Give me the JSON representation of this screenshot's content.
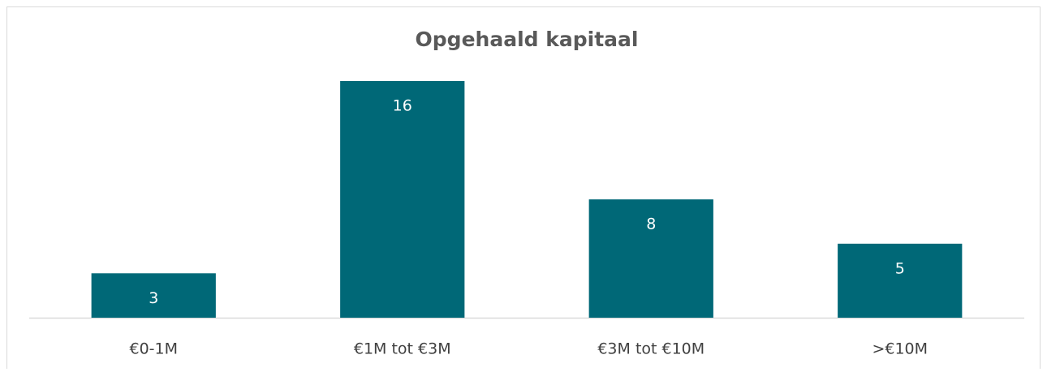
{
  "chart_data": {
    "type": "bar",
    "title": "Opgehaald kapitaal",
    "categories": [
      "€0-1M",
      "€1M tot €3M",
      "€3M tot €10M",
      ">€10M"
    ],
    "values": [
      3,
      16,
      8,
      5
    ],
    "color": "#006877",
    "data_labels": true
  }
}
